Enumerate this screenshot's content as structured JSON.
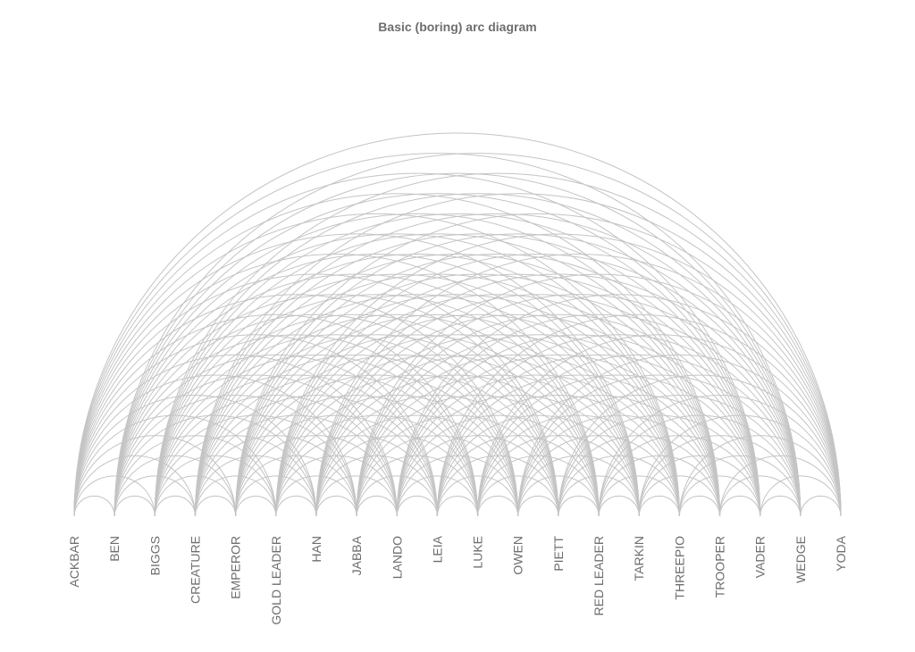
{
  "title": "Basic (boring) arc diagram",
  "colors": {
    "title": "#6e6e6e",
    "label": "#6e6e6e",
    "arc": "#c4c4c4",
    "background": "#ffffff"
  },
  "nodes": [
    "ACKBAR",
    "BEN",
    "BIGGS",
    "CREATURE",
    "EMPEROR",
    "GOLD LEADER",
    "HAN",
    "JABBA",
    "LANDO",
    "LEIA",
    "LUKE",
    "OWEN",
    "PIETT",
    "RED LEADER",
    "TARKIN",
    "THREEPIO",
    "TROOPER",
    "VADER",
    "WEDGE",
    "YODA"
  ],
  "links": "all-pairs"
}
